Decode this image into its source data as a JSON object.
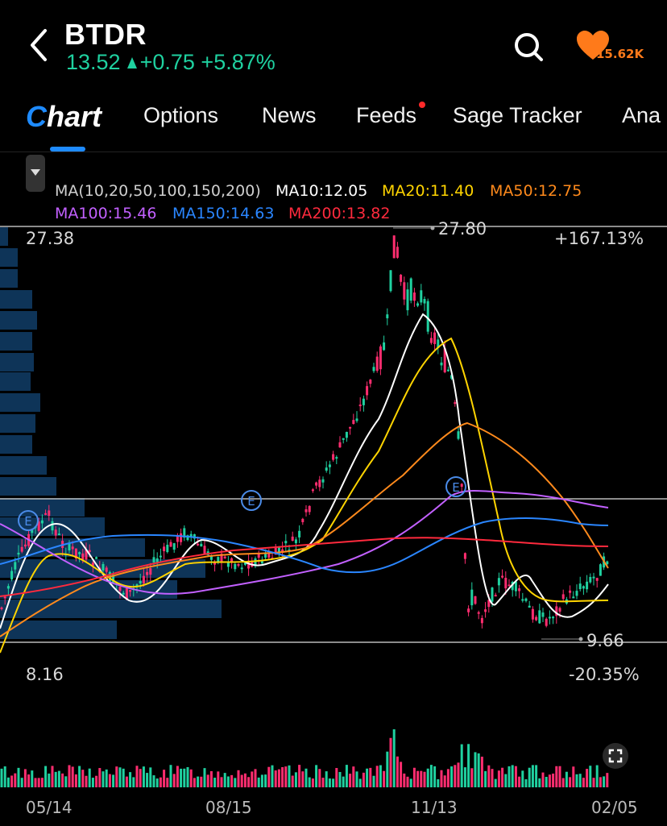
{
  "header": {
    "ticker": "BTDR",
    "price": "13.52",
    "change": "+0.75",
    "change_pct": "+5.87%",
    "favorites": "15.62K",
    "colors": {
      "up": "#1fd1a0",
      "down": "#ff2d6f",
      "accent": "#1e8bff",
      "heart": "#ff7a1a"
    }
  },
  "tabs": [
    {
      "label": "Options"
    },
    {
      "label": "News"
    },
    {
      "label": "Feeds",
      "badge_dot": true
    },
    {
      "label": "Sage Tracker"
    },
    {
      "label": "Ana"
    }
  ],
  "tab_chart": {
    "prefix": "C",
    "suffix": "hart"
  },
  "indicators": {
    "ma_config": "MA(10,20,50,100,150,200)",
    "ma10": "MA10:12.05",
    "ma20": "MA20:11.40",
    "ma50": "MA50:12.75",
    "ma100": "MA100:15.46",
    "ma150": "MA150:14.63",
    "ma200": "MA200:13.82"
  },
  "chart_labels": {
    "top_price": "27.38",
    "top_pct": "+167.13%",
    "bottom_price": "8.16",
    "bottom_pct": "-20.35%",
    "high_marker": "27.80",
    "low_marker": "9.66",
    "earnings_marker": "E"
  },
  "dates": [
    "05/14",
    "08/15",
    "11/13",
    "02/05"
  ],
  "icons": {
    "back": "chevron-left-icon",
    "search": "search-icon",
    "heart": "heart-icon",
    "expand": "expand-icon",
    "dropdown": "caret-down-icon"
  },
  "chart_data": {
    "type": "line",
    "ylim": [
      8.16,
      27.38
    ],
    "x": [
      "05/14",
      "08/15",
      "11/13",
      "02/05"
    ],
    "series": [
      {
        "name": "MA10",
        "last": 12.05,
        "color": "#ffffff"
      },
      {
        "name": "MA20",
        "last": 11.4,
        "color": "#ffd400"
      },
      {
        "name": "MA50",
        "last": 12.75,
        "color": "#ff8a1c"
      },
      {
        "name": "MA100",
        "last": 15.46,
        "color": "#c260ff"
      },
      {
        "name": "MA150",
        "last": 14.63,
        "color": "#2a86ff"
      },
      {
        "name": "MA200",
        "last": 13.82,
        "color": "#ff2a3d"
      }
    ],
    "high": 27.8,
    "low": 9.66,
    "last_close": 13.52
  }
}
